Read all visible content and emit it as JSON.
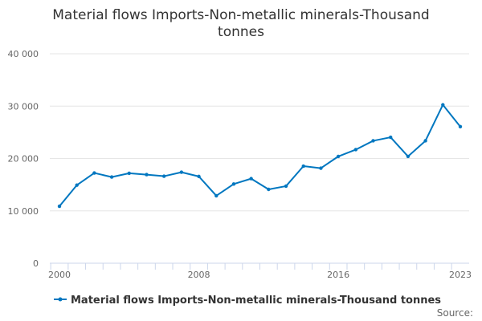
{
  "chart_data": {
    "type": "line",
    "title_lines": [
      "Material flows Imports-Non-metallic minerals-Thousand",
      "tonnes"
    ],
    "xlabel": "",
    "ylabel": "",
    "x": [
      2000,
      2001,
      2002,
      2003,
      2004,
      2005,
      2006,
      2007,
      2008,
      2009,
      2010,
      2011,
      2012,
      2013,
      2014,
      2015,
      2016,
      2017,
      2018,
      2019,
      2020,
      2021,
      2022,
      2023
    ],
    "series": [
      {
        "name": "Material flows Imports-Non-metallic minerals-Thousand tonnes",
        "color": "#0077c0",
        "values": [
          10880,
          14920,
          17230,
          16460,
          17180,
          16920,
          16620,
          17380,
          16570,
          12880,
          15120,
          16150,
          14100,
          14720,
          18540,
          18150,
          20400,
          21690,
          23380,
          24050,
          20400,
          23380,
          30250,
          26080
        ]
      }
    ],
    "xlim": [
      2000,
      2023
    ],
    "ylim": [
      0,
      40000
    ],
    "y_ticks": [
      0,
      10000,
      20000,
      30000,
      40000
    ],
    "y_tick_labels": [
      "0",
      "10 000",
      "20 000",
      "30 000",
      "40 000"
    ],
    "x_tick_labels": [
      "2000",
      "2008",
      "2016",
      "2023"
    ],
    "grid": "horizontal",
    "legend_position": "bottom"
  },
  "credits": "Source:"
}
